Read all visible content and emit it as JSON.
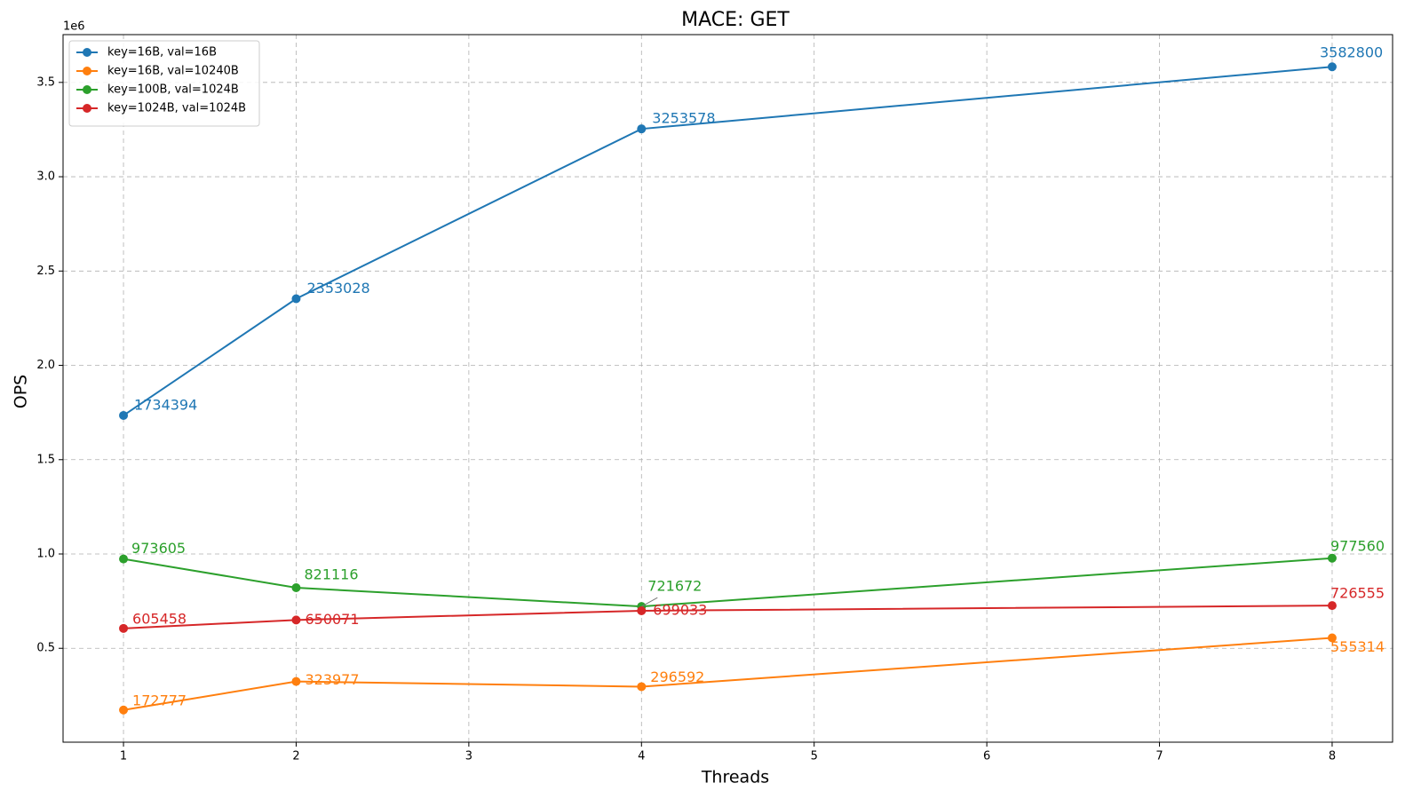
{
  "chart_data": {
    "type": "line",
    "title": "MACE: GET",
    "x_label": "Threads",
    "y_label": "OPS",
    "y_offset_label": "1e6",
    "x": [
      1,
      2,
      4,
      8
    ],
    "series": [
      {
        "name": "key=16B, val=16B",
        "color": "#1f77b4",
        "values": [
          1734394,
          2353028,
          3253578,
          3582800
        ]
      },
      {
        "name": "key=16B, val=10240B",
        "color": "#ff7f0e",
        "values": [
          172777,
          323977,
          296592,
          555314
        ]
      },
      {
        "name": "key=100B, val=1024B",
        "color": "#2ca02c",
        "values": [
          973605,
          821116,
          721672,
          977560
        ]
      },
      {
        "name": "key=1024B, val=1024B",
        "color": "#d62728",
        "values": [
          605458,
          650071,
          699033,
          726555
        ]
      }
    ],
    "xlim": [
      0.65,
      8.35
    ],
    "ylim": [
      2276,
      3753301
    ],
    "xticks": [
      1,
      2,
      3,
      4,
      5,
      6,
      7,
      8
    ],
    "yticks": [
      {
        "value": 500000,
        "label": "0.5"
      },
      {
        "value": 1000000,
        "label": "1.0"
      },
      {
        "value": 1500000,
        "label": "1.5"
      },
      {
        "value": 2000000,
        "label": "2.0"
      },
      {
        "value": 2500000,
        "label": "2.5"
      },
      {
        "value": 3000000,
        "label": "3.0"
      },
      {
        "value": 3500000,
        "label": "3.5"
      }
    ],
    "grid": true,
    "legend": "upper left"
  }
}
